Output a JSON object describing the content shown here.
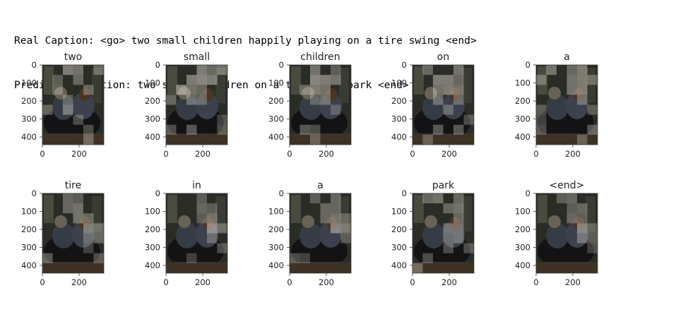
{
  "captions": {
    "real": "Real Caption: <go> two small children happily playing on a tire swing <end>",
    "prediction": "Prediction Caption: two small children on a tire in a park <end>"
  },
  "axes": {
    "y_ticks": [
      "0",
      "100",
      "200",
      "300",
      "400"
    ],
    "x_ticks": [
      "0",
      "200"
    ]
  },
  "panels": [
    {
      "word": "two",
      "highlight": [
        [
          2,
          0.8
        ],
        [
          3,
          0.7
        ],
        [
          5,
          0.6
        ],
        [
          7,
          0.5
        ],
        [
          9,
          0.6
        ],
        [
          13,
          0.55
        ],
        [
          16,
          0.6
        ],
        [
          20,
          0.5
        ],
        [
          24,
          0.6
        ],
        [
          26,
          0.7
        ],
        [
          33,
          0.5
        ],
        [
          40,
          0.5
        ],
        [
          46,
          0.6
        ]
      ]
    },
    {
      "word": "small",
      "highlight": [
        [
          3,
          0.8
        ],
        [
          4,
          0.6
        ],
        [
          5,
          0.7
        ],
        [
          8,
          0.8
        ],
        [
          9,
          0.9
        ],
        [
          10,
          0.8
        ],
        [
          13,
          0.9
        ],
        [
          14,
          0.7
        ],
        [
          15,
          0.6
        ],
        [
          18,
          0.6
        ],
        [
          20,
          0.6
        ],
        [
          21,
          0.5
        ],
        [
          35,
          0.4
        ],
        [
          36,
          0.5
        ],
        [
          38,
          0.6
        ],
        [
          41,
          0.5
        ]
      ]
    },
    {
      "word": "children",
      "highlight": [
        [
          2,
          0.7
        ],
        [
          4,
          0.5
        ],
        [
          8,
          0.9
        ],
        [
          9,
          0.8
        ],
        [
          10,
          0.7
        ],
        [
          13,
          0.6
        ],
        [
          14,
          0.8
        ],
        [
          15,
          0.7
        ],
        [
          20,
          0.5
        ],
        [
          21,
          0.6
        ],
        [
          28,
          0.4
        ],
        [
          37,
          0.6
        ],
        [
          38,
          0.5
        ],
        [
          44,
          0.5
        ]
      ]
    },
    {
      "word": "on",
      "highlight": [
        [
          1,
          0.6
        ],
        [
          4,
          0.7
        ],
        [
          8,
          0.8
        ],
        [
          9,
          0.8
        ],
        [
          10,
          0.6
        ],
        [
          14,
          0.7
        ],
        [
          15,
          0.8
        ],
        [
          16,
          0.7
        ],
        [
          20,
          0.6
        ],
        [
          22,
          0.5
        ],
        [
          27,
          0.5
        ],
        [
          35,
          0.5
        ],
        [
          38,
          0.6
        ],
        [
          40,
          0.6
        ],
        [
          43,
          0.5
        ]
      ]
    },
    {
      "word": "a",
      "highlight": [
        [
          1,
          0.7
        ],
        [
          3,
          0.6
        ],
        [
          4,
          0.8
        ],
        [
          6,
          0.6
        ],
        [
          9,
          0.7
        ],
        [
          10,
          0.8
        ],
        [
          11,
          0.6
        ],
        [
          15,
          0.7
        ],
        [
          16,
          0.8
        ],
        [
          22,
          0.6
        ],
        [
          24,
          0.5
        ],
        [
          29,
          0.5
        ],
        [
          30,
          0.4
        ],
        [
          36,
          0.5
        ],
        [
          41,
          0.6
        ],
        [
          46,
          0.5
        ]
      ]
    },
    {
      "word": "tire",
      "highlight": [
        [
          2,
          0.6
        ],
        [
          3,
          0.5
        ],
        [
          8,
          0.6
        ],
        [
          9,
          0.7
        ],
        [
          15,
          0.7
        ],
        [
          16,
          0.6
        ],
        [
          22,
          0.7
        ],
        [
          23,
          0.6
        ],
        [
          28,
          0.5
        ],
        [
          29,
          0.6
        ],
        [
          34,
          0.4
        ],
        [
          36,
          0.6
        ],
        [
          41,
          0.5
        ]
      ]
    },
    {
      "word": "in",
      "highlight": [
        [
          3,
          0.5
        ],
        [
          9,
          0.6
        ],
        [
          10,
          0.5
        ],
        [
          15,
          0.5
        ],
        [
          16,
          0.7
        ],
        [
          22,
          0.9
        ],
        [
          23,
          0.6
        ],
        [
          28,
          0.5
        ],
        [
          35,
          0.5
        ],
        [
          38,
          0.4
        ]
      ]
    },
    {
      "word": "a",
      "highlight": [
        [
          2,
          0.5
        ],
        [
          4,
          0.6
        ],
        [
          9,
          0.6
        ],
        [
          10,
          0.6
        ],
        [
          15,
          0.6
        ],
        [
          16,
          0.7
        ],
        [
          17,
          0.5
        ],
        [
          22,
          0.8
        ],
        [
          23,
          0.7
        ],
        [
          29,
          0.5
        ],
        [
          36,
          0.5
        ],
        [
          37,
          0.4
        ]
      ]
    },
    {
      "word": "park",
      "highlight": [
        [
          1,
          0.6
        ],
        [
          2,
          0.7
        ],
        [
          4,
          0.6
        ],
        [
          9,
          0.6
        ],
        [
          10,
          0.7
        ],
        [
          16,
          0.6
        ],
        [
          21,
          0.6
        ],
        [
          22,
          0.6
        ],
        [
          27,
          0.5
        ],
        [
          28,
          0.6
        ],
        [
          33,
          0.5
        ],
        [
          35,
          0.5
        ],
        [
          37,
          0.5
        ],
        [
          42,
          0.6
        ]
      ]
    },
    {
      "word": "<end>",
      "highlight": [
        [
          2,
          0.5
        ],
        [
          3,
          0.6
        ],
        [
          9,
          0.5
        ],
        [
          10,
          0.6
        ],
        [
          15,
          0.6
        ],
        [
          16,
          0.5
        ],
        [
          22,
          0.8
        ],
        [
          23,
          0.5
        ],
        [
          28,
          0.6
        ],
        [
          29,
          0.5
        ],
        [
          35,
          0.4
        ]
      ]
    }
  ]
}
